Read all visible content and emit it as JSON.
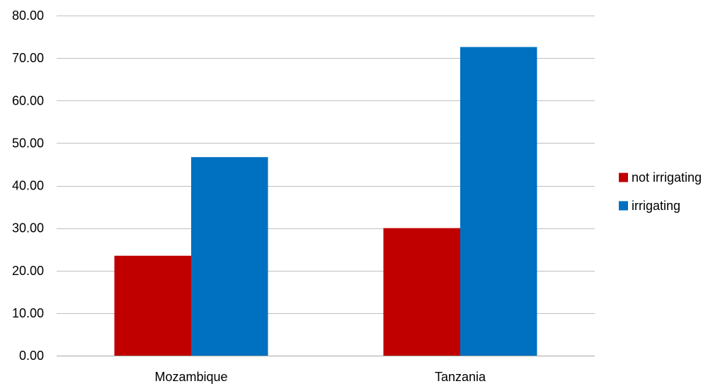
{
  "chart_data": {
    "type": "bar",
    "categories": [
      "Mozambique",
      "Tanzania"
    ],
    "series": [
      {
        "name": "not irrigating",
        "color": "#c00000",
        "values": [
          23.5,
          30.0
        ]
      },
      {
        "name": "irrigating",
        "color": "#0070c0",
        "values": [
          46.7,
          72.6
        ]
      }
    ],
    "ylim": [
      0,
      80
    ],
    "yticks": [
      0,
      10,
      20,
      30,
      40,
      50,
      60,
      70,
      80
    ],
    "ytick_decimals": 2,
    "grid": true,
    "legend_position": "right",
    "title": "",
    "xlabel": "",
    "ylabel": ""
  }
}
